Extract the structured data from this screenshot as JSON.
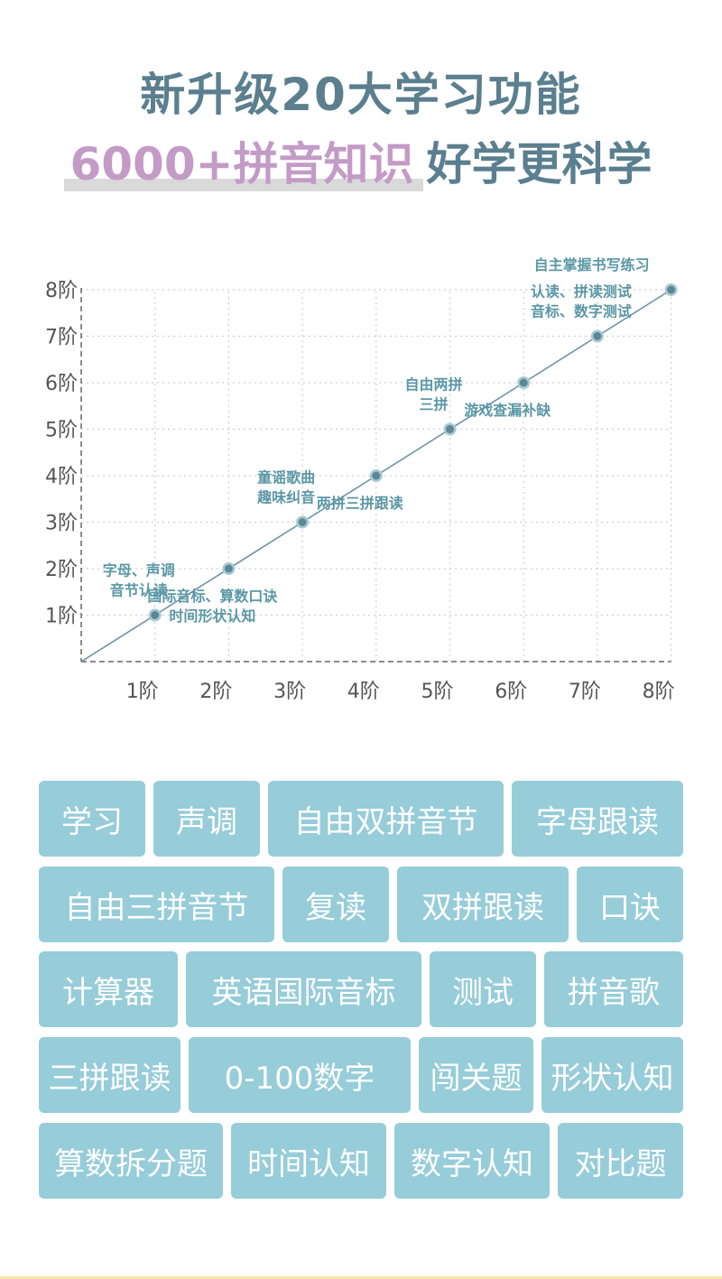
{
  "header": {
    "line1": "新升级20大学习功能",
    "highlight": "6000+拼音知识",
    "rest": "好学更科学"
  },
  "chart_data": {
    "type": "line",
    "x_ticks": [
      "1阶",
      "2阶",
      "3阶",
      "4阶",
      "5阶",
      "6阶",
      "7阶",
      "8阶"
    ],
    "y_ticks": [
      "1阶",
      "2阶",
      "3阶",
      "4阶",
      "5阶",
      "6阶",
      "7阶",
      "8阶"
    ],
    "xlim": [
      0,
      8
    ],
    "ylim": [
      0,
      8
    ],
    "grid": true,
    "series": [
      {
        "x": [
          1,
          2,
          3,
          4,
          5,
          6,
          7,
          8
        ],
        "y": [
          1,
          2,
          3,
          4,
          5,
          6,
          7,
          8
        ]
      }
    ],
    "annotations": [
      {
        "x": 1,
        "y": 1,
        "pos": "above",
        "lines": [
          "字母、声调",
          "音节认读"
        ]
      },
      {
        "x": 2,
        "y": 2,
        "pos": "below",
        "lines": [
          "国际音标、算数口诀",
          "时间形状认知"
        ]
      },
      {
        "x": 3,
        "y": 3,
        "pos": "above",
        "lines": [
          "童谣歌曲",
          "趣味纠音"
        ]
      },
      {
        "x": 4,
        "y": 4,
        "pos": "below",
        "lines": [
          "两拼三拼跟读"
        ]
      },
      {
        "x": 5,
        "y": 5,
        "pos": "above",
        "lines": [
          "自由两拼",
          "三拼"
        ]
      },
      {
        "x": 6,
        "y": 6,
        "pos": "below",
        "lines": [
          "游戏查漏补缺"
        ]
      },
      {
        "x": 7,
        "y": 7,
        "pos": "above",
        "lines": [
          "认读、拼读测试",
          "音标、数字测试"
        ]
      },
      {
        "x": 8,
        "y": 8,
        "pos": "above",
        "lines": [
          "自主掌握书写练习"
        ]
      }
    ],
    "colors": {
      "line": "#6a93a1",
      "point": "#5b8796",
      "point_ring": "#a9c9d3",
      "grid": "#cfcfcf",
      "label": "#5b97a5",
      "tick": "#555555"
    }
  },
  "tags": {
    "rows": [
      [
        "学习",
        "声调",
        "自由双拼音节",
        "字母跟读"
      ],
      [
        "自由三拼音节",
        "复读",
        "双拼跟读",
        "口诀"
      ],
      [
        "计算器",
        "英语国际音标",
        "测试",
        "拼音歌"
      ],
      [
        "三拼跟读",
        "0-100数字",
        "闯关题",
        "形状认知"
      ],
      [
        "算数拆分题",
        "时间认知",
        "数字认知",
        "对比题"
      ]
    ]
  }
}
